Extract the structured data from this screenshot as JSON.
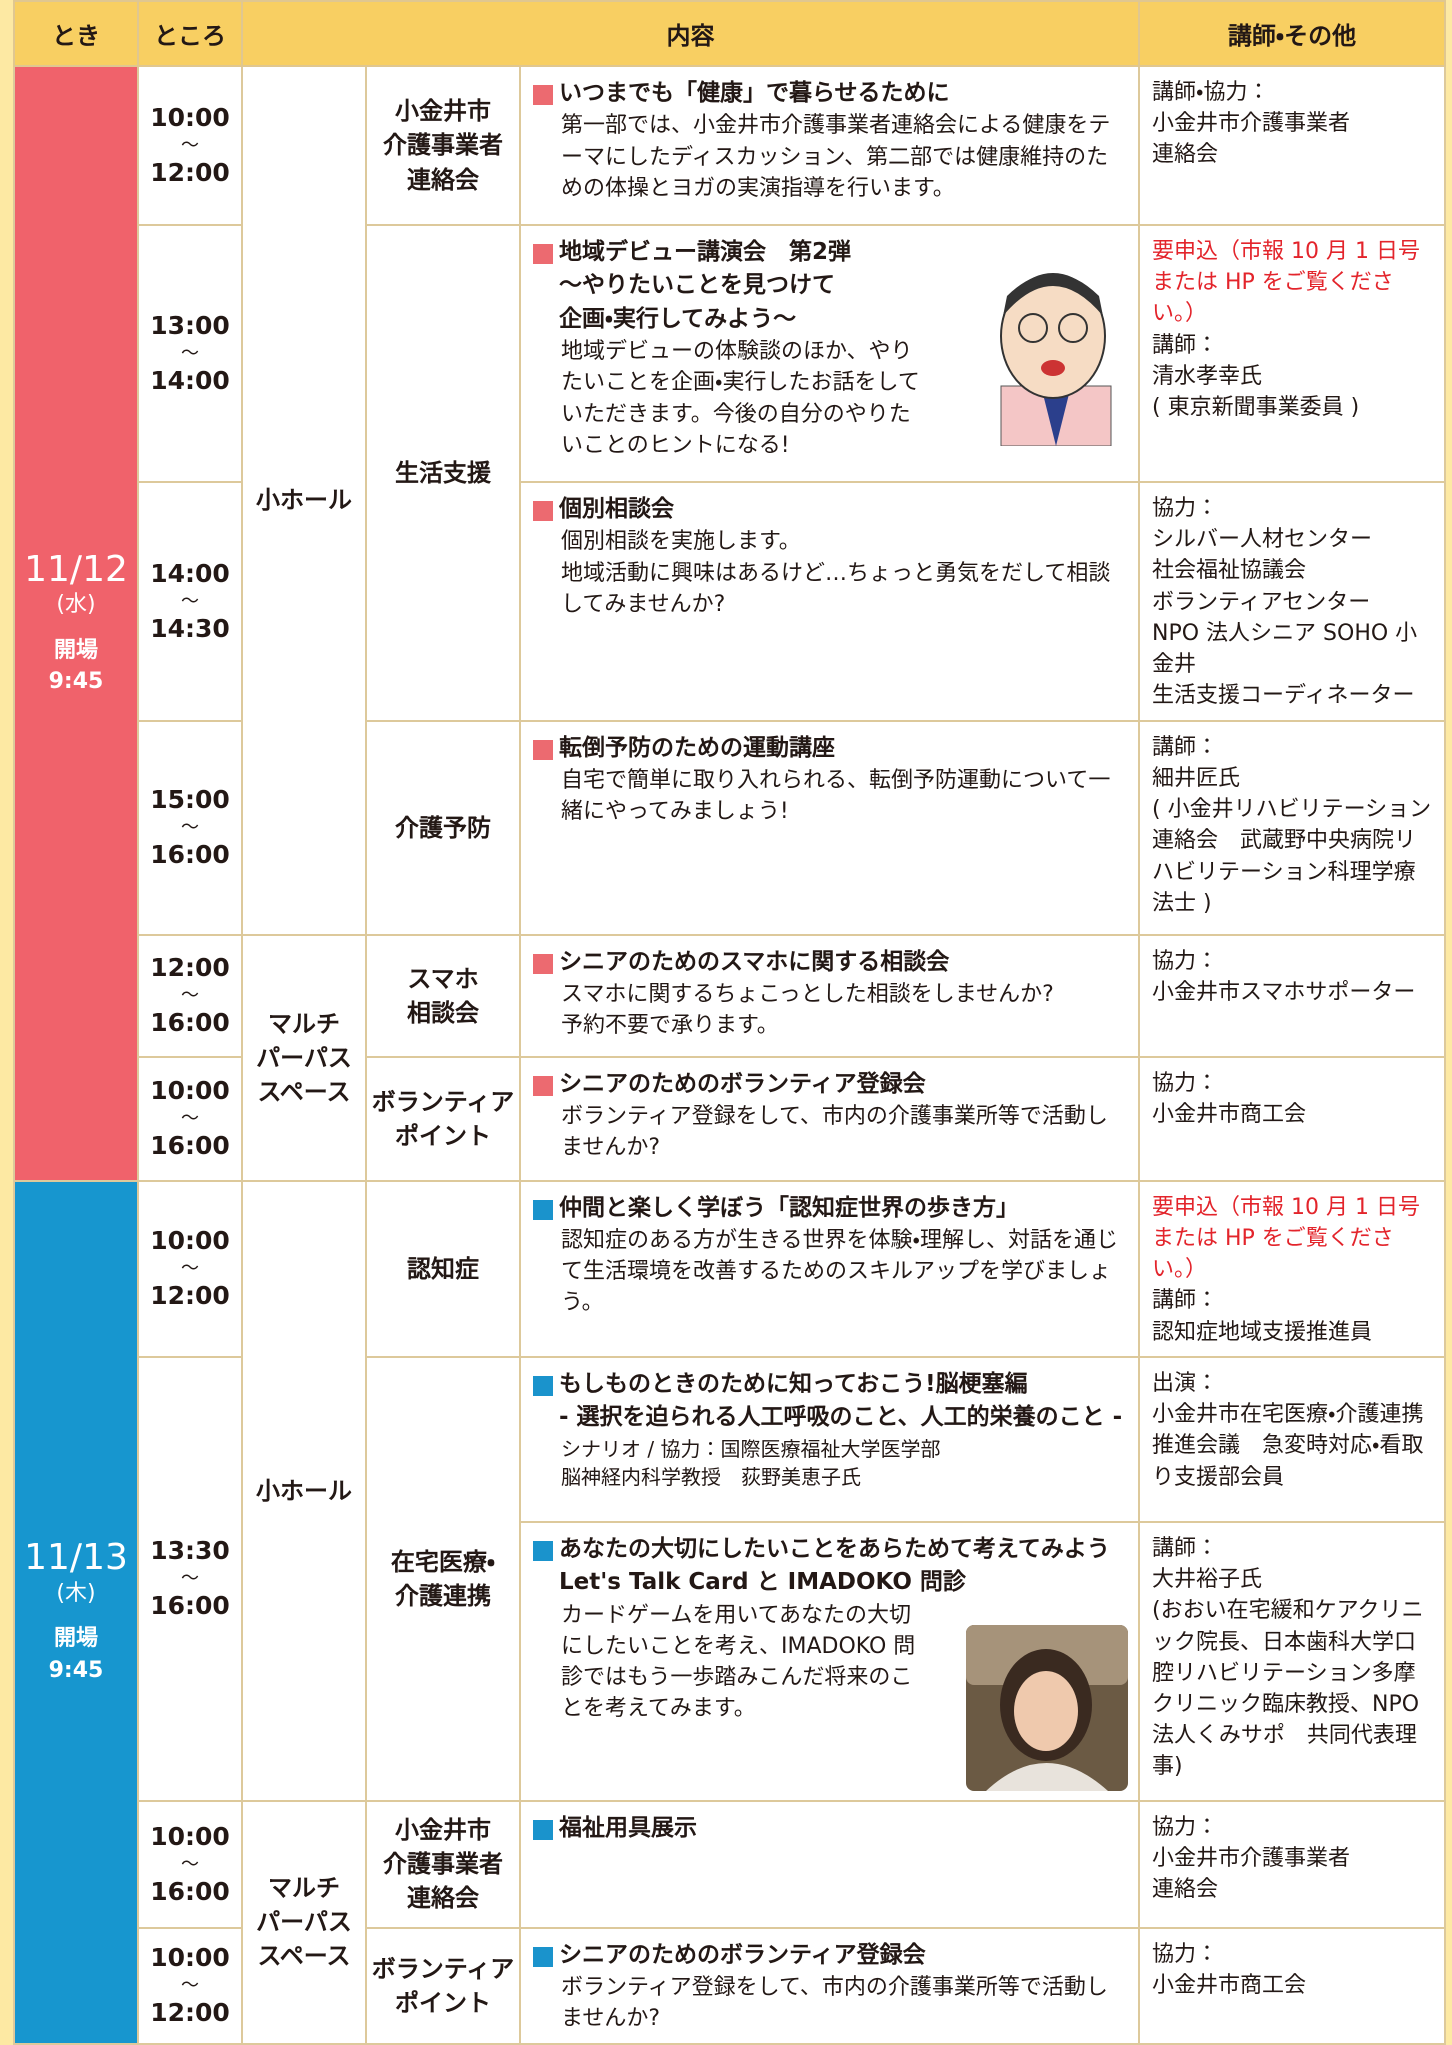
{
  "header": [
    "とき",
    "ところ",
    "内容",
    "講師・その他"
  ],
  "days": [
    {
      "date": "11/12",
      "weekday": "(水)",
      "open_label": "開場",
      "open_time": "9:45",
      "places": [
        [
          "小ホール"
        ],
        [
          "マルチ",
          "パーパス",
          "スペース"
        ]
      ]
    },
    {
      "date": "11/13",
      "weekday": "(木)",
      "open_label": "開場",
      "open_time": "9:45",
      "places": [
        [
          "小ホール"
        ],
        [
          "マルチ",
          "パーパス",
          "スペース"
        ]
      ]
    }
  ],
  "sessions": [
    {
      "time": [
        "10:00",
        "〜",
        "12:00"
      ],
      "category": [
        "小金井市",
        "介護事業者",
        "連絡会"
      ],
      "title": [
        "いつまでも「健康」で暮らせるために"
      ],
      "body": [
        "第一部では、小金井市介護事業者連絡会による健康をテーマにしたディスカッション、第二部では健康維持のための体操とヨガの実演指導を行います。"
      ],
      "notes": [
        "講師・協力：",
        "小金井市介護事業者",
        "連絡会"
      ]
    },
    {
      "time": [
        "13:00",
        "〜",
        "14:00"
      ],
      "category": [
        "生活支援"
      ],
      "title": [
        "地域デビュー講演会　第2弾",
        "〜やりたいことを見つけて",
        "企画・実行してみよう〜"
      ],
      "body": [
        "地域デビューの体験談のほか、やりたいことを企画・実行したお話をしていただきます。今後の自分のやりたいことのヒントになる!"
      ],
      "notice": [
        "要申込（市報 10 月 1 日号",
        "または HP をご覧ください。）"
      ],
      "notes": [
        "講師：",
        "清水孝幸氏",
        "( 東京新聞事業委員 )"
      ]
    },
    {
      "time": [
        "14:00",
        "〜",
        "14:30"
      ],
      "title": [
        "個別相談会"
      ],
      "body": [
        "個別相談を実施します。",
        "地域活動に興味はあるけど…ちょっと勇気をだして相談してみませんか?"
      ],
      "notes": [
        "協力：",
        "シルバー人材センター",
        "社会福祉協議会",
        "ボランティアセンター",
        "NPO 法人シニア SOHO 小金井",
        "生活支援コーディネーター"
      ]
    },
    {
      "time": [
        "15:00",
        "〜",
        "16:00"
      ],
      "category": [
        "介護予防"
      ],
      "title": [
        "転倒予防のための運動講座"
      ],
      "body": [
        "自宅で簡単に取り入れられる、転倒予防運動について一緒にやってみましょう!"
      ],
      "notes": [
        "講師：",
        "細井匠氏",
        "( 小金井リハビリテーション連絡会　武蔵野中央病院リハビリテーション科理学療法士 )"
      ]
    },
    {
      "time": [
        "12:00",
        "〜",
        "16:00"
      ],
      "category": [
        "スマホ",
        "相談会"
      ],
      "title": [
        "シニアのためのスマホに関する相談会"
      ],
      "body": [
        "スマホに関するちょこっとした相談をしませんか?",
        "予約不要で承ります。"
      ],
      "notes": [
        "協力：",
        "小金井市スマホサポーター"
      ]
    },
    {
      "time": [
        "10:00",
        "〜",
        "16:00"
      ],
      "category": [
        "ボランティア",
        "ポイント"
      ],
      "title": [
        "シニアのためのボランティア登録会"
      ],
      "body": [
        "ボランティア登録をして、市内の介護事業所等で活動しませんか?"
      ],
      "notes": [
        "協力：",
        "小金井市商工会"
      ]
    },
    {
      "time": [
        "10:00",
        "〜",
        "12:00"
      ],
      "category": [
        "認知症"
      ],
      "title": [
        "仲間と楽しく学ぼう「認知症世界の歩き方」"
      ],
      "body": [
        "認知症のある方が生きる世界を体験・理解し、対話を通じて生活環境を改善するためのスキルアップを学びましょう。"
      ],
      "notice": [
        "要申込（市報 10 月 1 日号",
        "または HP をご覧ください。）"
      ],
      "notes": [
        "講師：",
        "認知症地域支援推進員"
      ]
    },
    {
      "time": [
        "13:30",
        "〜",
        "16:00"
      ],
      "category": [
        "在宅医療・",
        "介護連携"
      ],
      "title": [
        "もしものときのために知っておこう!脳梗塞編",
        "- 選択を迫られる人工呼吸のこと、人工的栄養のこと -"
      ],
      "small": [
        "シナリオ / 協力：国際医療福祉大学医学部",
        "脳神経内科学教授　荻野美恵子氏"
      ],
      "notes": [
        "出演：",
        "小金井市在宅医療・介護連携推進会議　急変時対応・看取り支援部会員"
      ]
    },
    {
      "title": [
        "あなたの大切にしたいことをあらためて考えてみよう",
        "Let's Talk Card と IMADOKO 問診"
      ],
      "body": [
        "カードゲームを用いてあなたの大切にしたいことを考え、IMADOKO 問診ではもう一歩踏みこんだ将来のことを考えてみます。"
      ],
      "notes": [
        "講師：",
        "大井裕子氏",
        "(おおい在宅緩和ケアクリニック院長、日本歯科大学口腔リハビリテーション多摩クリニック臨床教授、NPO 法人くみサポ　共同代表理事)"
      ]
    },
    {
      "time": [
        "10:00",
        "〜",
        "16:00"
      ],
      "category": [
        "小金井市",
        "介護事業者",
        "連絡会"
      ],
      "title": [
        "福祉用具展示"
      ],
      "notes": [
        "協力：",
        "小金井市介護事業者",
        "連絡会"
      ]
    },
    {
      "time": [
        "10:00",
        "〜",
        "12:00"
      ],
      "category": [
        "ボランティア",
        "ポイント"
      ],
      "title": [
        "シニアのためのボランティア登録会"
      ],
      "body": [
        "ボランティア登録をして、市内の介護事業所等で活動しませんか?"
      ],
      "notes": [
        "協力：",
        "小金井市商工会"
      ]
    }
  ]
}
